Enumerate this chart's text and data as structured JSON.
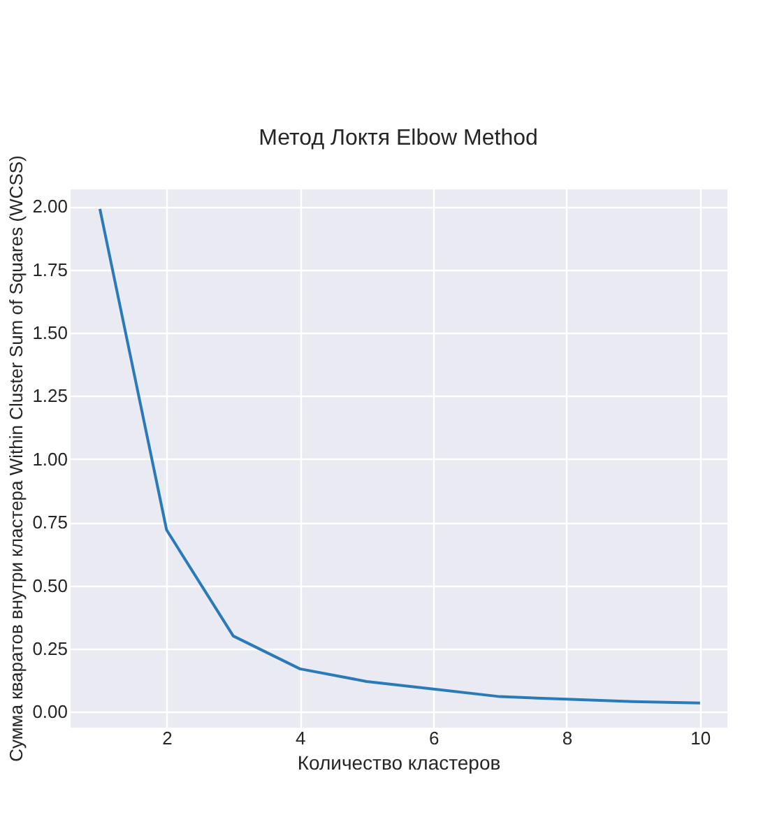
{
  "chart_data": {
    "type": "line",
    "title": "Метод Локтя Elbow Method",
    "xlabel": "Количество кластеров",
    "ylabel": "Сумма кваратов внутри кластера Within Cluster Sum of Squares (WCSS)",
    "x": [
      1,
      2,
      3,
      4,
      5,
      6,
      7,
      8,
      9,
      10
    ],
    "series": [
      {
        "color": "#2a7ab9",
        "values": [
          1.99,
          0.72,
          0.3,
          0.17,
          0.12,
          0.09,
          0.06,
          0.05,
          0.04,
          0.035
        ]
      }
    ],
    "xlim": [
      0.55,
      10.4
    ],
    "xticks": [
      2,
      4,
      6,
      8,
      10
    ],
    "ylim": [
      -0.06,
      2.07
    ],
    "yticks": [
      {
        "value": 0,
        "label": "0.00"
      },
      {
        "value": 0.25,
        "label": "0.25"
      },
      {
        "value": 0.5,
        "label": "0.50"
      },
      {
        "value": 0.75,
        "label": "0.75"
      },
      {
        "value": 1,
        "label": "1.00"
      },
      {
        "value": 1.25,
        "label": "1.25"
      },
      {
        "value": 1.5,
        "label": "1.50"
      },
      {
        "value": 1.75,
        "label": "1.75"
      },
      {
        "value": 2,
        "label": "2.00"
      }
    ],
    "grid": true,
    "marker": "none",
    "line_style": "solid"
  }
}
